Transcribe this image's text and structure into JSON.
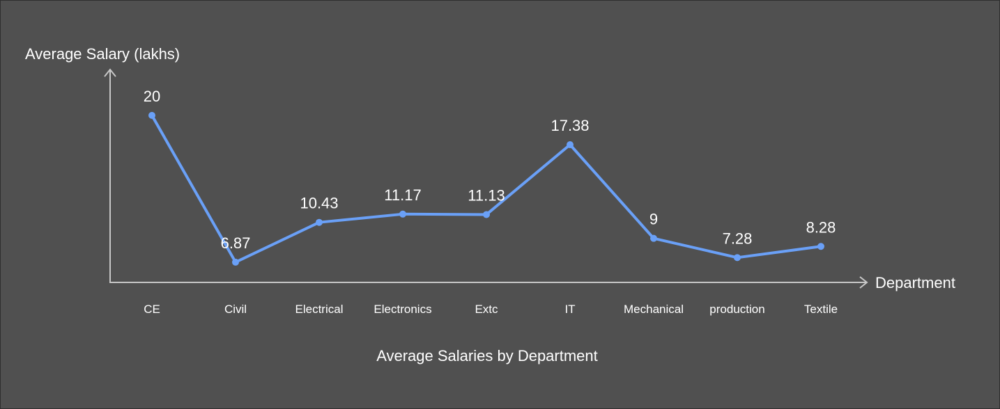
{
  "chart_data": {
    "type": "line",
    "title": "Average Salaries by Department",
    "xlabel": "Department",
    "ylabel": "Average Salary (lakhs)",
    "categories": [
      "CE",
      "Civil",
      "Electrical",
      "Electronics",
      "Extc",
      "IT",
      "Mechanical",
      "production",
      "Textile"
    ],
    "values": [
      20,
      6.87,
      10.43,
      11.17,
      11.13,
      17.38,
      9,
      7.28,
      8.28
    ],
    "value_labels": [
      "20",
      "6.87",
      "10.43",
      "11.17",
      "11.13",
      "17.38",
      "9",
      "7.28",
      "8.28"
    ],
    "ylim": [
      5.06,
      24.1
    ],
    "grid": false,
    "line_color": "#6aa0f7",
    "axis_color": "#c8c8c8",
    "background": "#505050"
  }
}
